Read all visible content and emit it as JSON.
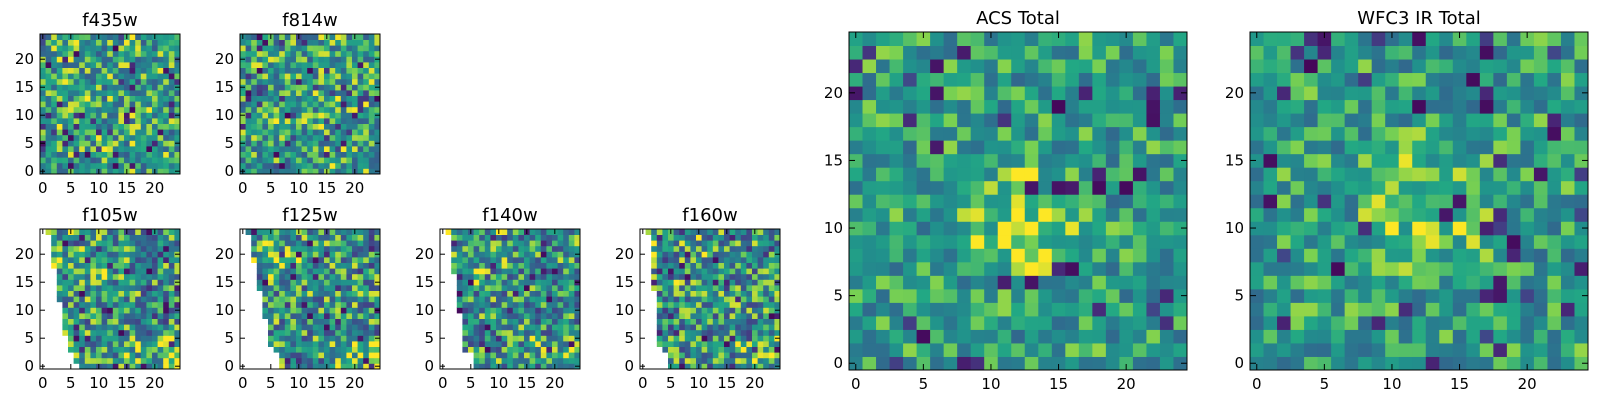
{
  "chart_data": [
    {
      "type": "heatmap",
      "title": "f435w",
      "grid_size": 25,
      "mask": "none",
      "seed": 11,
      "xticks": [
        0,
        5,
        10,
        15,
        20
      ],
      "yticks": [
        0,
        5,
        10,
        15,
        20
      ],
      "xtick_labels": [
        "0",
        "5",
        "10",
        "15",
        "20"
      ],
      "ytick_labels": [
        "0",
        "5",
        "10",
        "15",
        "20"
      ],
      "xlim": [
        -0.5,
        24.5
      ],
      "ylim": [
        -0.5,
        24.5
      ],
      "colormap": "viridis"
    },
    {
      "type": "heatmap",
      "title": "f814w",
      "grid_size": 25,
      "mask": "none",
      "seed": 23,
      "xticks": [
        0,
        5,
        10,
        15,
        20
      ],
      "yticks": [
        0,
        5,
        10,
        15,
        20
      ],
      "xtick_labels": [
        "0",
        "5",
        "10",
        "15",
        "20"
      ],
      "ytick_labels": [
        "0",
        "5",
        "10",
        "15",
        "20"
      ],
      "xlim": [
        -0.5,
        24.5
      ],
      "ylim": [
        -0.5,
        24.5
      ],
      "colormap": "viridis"
    },
    {
      "type": "heatmap",
      "title": "f105w",
      "grid_size": 25,
      "mask": "diagonal",
      "seed": 37,
      "xticks": [
        0,
        5,
        10,
        15,
        20
      ],
      "yticks": [
        0,
        5,
        10,
        15,
        20
      ],
      "xtick_labels": [
        "0",
        "5",
        "10",
        "15",
        "20"
      ],
      "ytick_labels": [
        "0",
        "5",
        "10",
        "15",
        "20"
      ],
      "xlim": [
        -0.5,
        24.5
      ],
      "ylim": [
        -0.5,
        24.5
      ],
      "colormap": "viridis"
    },
    {
      "type": "heatmap",
      "title": "f125w",
      "grid_size": 25,
      "mask": "diagonal",
      "seed": 41,
      "xticks": [
        0,
        5,
        10,
        15,
        20
      ],
      "yticks": [
        0,
        5,
        10,
        15,
        20
      ],
      "xtick_labels": [
        "0",
        "5",
        "10",
        "15",
        "20"
      ],
      "ytick_labels": [
        "0",
        "5",
        "10",
        "15",
        "20"
      ],
      "xlim": [
        -0.5,
        24.5
      ],
      "ylim": [
        -0.5,
        24.5
      ],
      "colormap": "viridis"
    },
    {
      "type": "heatmap",
      "title": "f140w",
      "grid_size": 25,
      "mask": "diagonal",
      "seed": 53,
      "xticks": [
        0,
        5,
        10,
        15,
        20
      ],
      "yticks": [
        0,
        5,
        10,
        15,
        20
      ],
      "xtick_labels": [
        "0",
        "5",
        "10",
        "15",
        "20"
      ],
      "ytick_labels": [
        "0",
        "5",
        "10",
        "15",
        "20"
      ],
      "xlim": [
        -0.5,
        24.5
      ],
      "ylim": [
        -0.5,
        24.5
      ],
      "colormap": "viridis"
    },
    {
      "type": "heatmap",
      "title": "f160w",
      "grid_size": 25,
      "mask": "diagonal",
      "seed": 67,
      "xticks": [
        0,
        5,
        10,
        15,
        20
      ],
      "yticks": [
        0,
        5,
        10,
        15,
        20
      ],
      "xtick_labels": [
        "0",
        "5",
        "10",
        "15",
        "20"
      ],
      "ytick_labels": [
        "0",
        "5",
        "10",
        "15",
        "20"
      ],
      "xlim": [
        -0.5,
        24.5
      ],
      "ylim": [
        -0.5,
        24.5
      ],
      "colormap": "viridis"
    },
    {
      "type": "heatmap",
      "title": "ACS Total",
      "grid_size": 25,
      "mask": "none",
      "seed": 79,
      "xticks": [
        0,
        5,
        10,
        15,
        20
      ],
      "yticks": [
        0,
        5,
        10,
        15,
        20
      ],
      "xtick_labels": [
        "0",
        "5",
        "10",
        "15",
        "20"
      ],
      "ytick_labels": [
        "0",
        "5",
        "10",
        "15",
        "20"
      ],
      "xlim": [
        -0.5,
        24.5
      ],
      "ylim": [
        -0.5,
        24.5
      ],
      "colormap": "viridis"
    },
    {
      "type": "heatmap",
      "title": "WFC3 IR Total",
      "grid_size": 25,
      "mask": "none",
      "seed": 97,
      "xticks": [
        0,
        5,
        10,
        15,
        20
      ],
      "yticks": [
        0,
        5,
        10,
        15,
        20
      ],
      "xtick_labels": [
        "0",
        "5",
        "10",
        "15",
        "20"
      ],
      "ytick_labels": [
        "0",
        "5",
        "10",
        "15",
        "20"
      ],
      "xlim": [
        -0.5,
        24.5
      ],
      "ylim": [
        -0.5,
        24.5
      ],
      "colormap": "viridis"
    }
  ]
}
